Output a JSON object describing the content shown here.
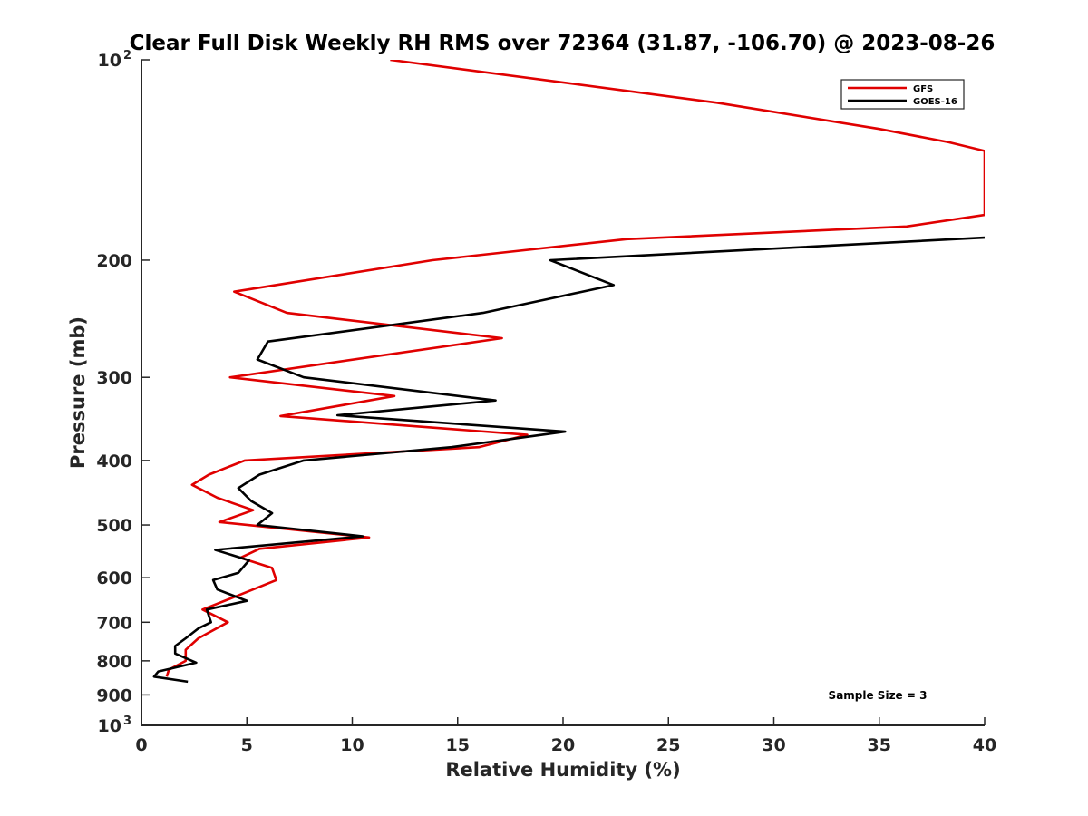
{
  "chart_data": {
    "type": "line",
    "title": "Clear Full Disk Weekly RH RMS over 72364 (31.87, -106.70) @ 2023-08-26",
    "xlabel": "Relative Humidity (%)",
    "ylabel": "Pressure (mb)",
    "xlim": [
      0,
      40
    ],
    "ylim": [
      100,
      1000
    ],
    "y_scale": "log",
    "y_reversed": true,
    "grid": false,
    "legend_position": "top-right",
    "x_ticks": [
      0,
      5,
      10,
      15,
      20,
      25,
      30,
      35,
      40
    ],
    "y_ticks": [
      {
        "value": 100,
        "label": "10",
        "sup": "2"
      },
      {
        "value": 200,
        "label": "200",
        "sup": ""
      },
      {
        "value": 300,
        "label": "300",
        "sup": ""
      },
      {
        "value": 400,
        "label": "400",
        "sup": ""
      },
      {
        "value": 500,
        "label": "500",
        "sup": ""
      },
      {
        "value": 600,
        "label": "600",
        "sup": ""
      },
      {
        "value": 700,
        "label": "700",
        "sup": ""
      },
      {
        "value": 800,
        "label": "800",
        "sup": ""
      },
      {
        "value": 900,
        "label": "900",
        "sup": ""
      },
      {
        "value": 1000,
        "label": "10",
        "sup": "3"
      }
    ],
    "annotation": "Sample Size = 3",
    "series": [
      {
        "name": "GFS",
        "color": "#e00000",
        "points": [
          [
            11.8,
            100
          ],
          [
            27.3,
            116
          ],
          [
            35.0,
            127
          ],
          [
            38.3,
            133
          ],
          [
            40.0,
            137
          ],
          [
            40.0,
            171
          ],
          [
            36.3,
            178
          ],
          [
            23.0,
            186
          ],
          [
            13.8,
            200
          ],
          [
            4.4,
            223
          ],
          [
            6.9,
            240
          ],
          [
            17.1,
            262
          ],
          [
            4.2,
            300
          ],
          [
            12.0,
            320
          ],
          [
            6.6,
            343
          ],
          [
            18.3,
            366
          ],
          [
            16.0,
            382
          ],
          [
            4.9,
            400
          ],
          [
            3.2,
            420
          ],
          [
            2.4,
            435
          ],
          [
            3.6,
            455
          ],
          [
            5.3,
            475
          ],
          [
            3.7,
            495
          ],
          [
            10.8,
            522
          ],
          [
            5.6,
            543
          ],
          [
            4.7,
            560
          ],
          [
            6.2,
            580
          ],
          [
            6.4,
            605
          ],
          [
            4.6,
            638
          ],
          [
            2.9,
            670
          ],
          [
            4.1,
            700
          ],
          [
            2.7,
            740
          ],
          [
            2.1,
            770
          ],
          [
            2.1,
            800
          ],
          [
            1.3,
            825
          ],
          [
            1.2,
            845
          ]
        ]
      },
      {
        "name": "GOES-16",
        "color": "#000000",
        "points": [
          [
            40.0,
            185
          ],
          [
            19.4,
            200
          ],
          [
            22.4,
            218
          ],
          [
            16.2,
            240
          ],
          [
            6.0,
            265
          ],
          [
            5.5,
            282
          ],
          [
            7.7,
            300
          ],
          [
            16.8,
            325
          ],
          [
            9.3,
            342
          ],
          [
            20.1,
            362
          ],
          [
            14.7,
            382
          ],
          [
            7.7,
            400
          ],
          [
            5.6,
            420
          ],
          [
            4.6,
            440
          ],
          [
            5.2,
            460
          ],
          [
            6.2,
            480
          ],
          [
            5.5,
            500
          ],
          [
            10.5,
            520
          ],
          [
            3.5,
            545
          ],
          [
            5.1,
            565
          ],
          [
            4.6,
            590
          ],
          [
            3.4,
            605
          ],
          [
            3.6,
            625
          ],
          [
            5.0,
            650
          ],
          [
            3.1,
            670
          ],
          [
            3.3,
            700
          ],
          [
            2.7,
            715
          ],
          [
            2.1,
            740
          ],
          [
            1.6,
            760
          ],
          [
            1.6,
            780
          ],
          [
            2.6,
            805
          ],
          [
            0.8,
            830
          ],
          [
            0.6,
            845
          ],
          [
            2.2,
            860
          ]
        ]
      }
    ]
  }
}
